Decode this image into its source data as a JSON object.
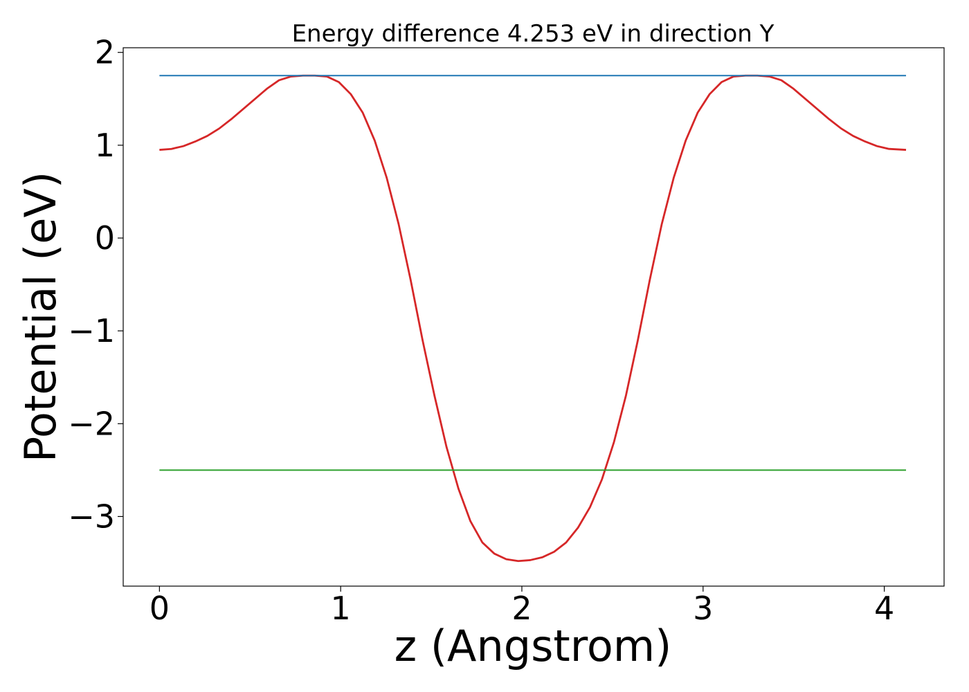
{
  "chart_data": {
    "type": "line",
    "title": "Energy difference 4.253 eV in direction Y",
    "xlabel": "z (Angstrom)",
    "ylabel": "Potential (eV)",
    "xlim": [
      -0.2,
      4.33
    ],
    "ylim": [
      -3.75,
      2.05
    ],
    "xticks": [
      0,
      1,
      2,
      3,
      4
    ],
    "xtick_labels": [
      "0",
      "1",
      "2",
      "3",
      "4"
    ],
    "yticks": [
      -3,
      -2,
      -1,
      0,
      1,
      2
    ],
    "ytick_labels": [
      "−3",
      "−2",
      "−1",
      "0",
      "1",
      "2"
    ],
    "grid": false,
    "legend": "none",
    "series": [
      {
        "color": "#d62728",
        "style": "line",
        "x": [
          0.0,
          0.066,
          0.132,
          0.198,
          0.264,
          0.33,
          0.396,
          0.462,
          0.528,
          0.594,
          0.66,
          0.726,
          0.792,
          0.858,
          0.924,
          0.99,
          1.056,
          1.122,
          1.188,
          1.254,
          1.32,
          1.386,
          1.452,
          1.518,
          1.584,
          1.65,
          1.716,
          1.782,
          1.848,
          1.914,
          1.98,
          2.046,
          2.112,
          2.178,
          2.244,
          2.31,
          2.376,
          2.442,
          2.508,
          2.574,
          2.64,
          2.706,
          2.772,
          2.838,
          2.904,
          2.97,
          3.036,
          3.102,
          3.168,
          3.234,
          3.3,
          3.366,
          3.432,
          3.498,
          3.564,
          3.63,
          3.696,
          3.762,
          3.828,
          3.894,
          3.96,
          4.026,
          4.12
        ],
        "y": [
          0.95,
          0.96,
          0.99,
          1.04,
          1.1,
          1.18,
          1.28,
          1.39,
          1.5,
          1.61,
          1.7,
          1.74,
          1.75,
          1.75,
          1.74,
          1.68,
          1.55,
          1.35,
          1.05,
          0.65,
          0.15,
          -0.45,
          -1.1,
          -1.7,
          -2.25,
          -2.7,
          -3.05,
          -3.28,
          -3.4,
          -3.46,
          -3.48,
          -3.47,
          -3.44,
          -3.38,
          -3.28,
          -3.12,
          -2.9,
          -2.6,
          -2.2,
          -1.7,
          -1.1,
          -0.45,
          0.15,
          0.65,
          1.05,
          1.35,
          1.55,
          1.68,
          1.74,
          1.75,
          1.75,
          1.74,
          1.7,
          1.61,
          1.5,
          1.39,
          1.28,
          1.18,
          1.1,
          1.04,
          0.99,
          0.96,
          0.95
        ]
      },
      {
        "color": "#1f77b4",
        "style": "hline",
        "x": [
          0.0,
          4.12
        ],
        "y": [
          1.75,
          1.75
        ]
      },
      {
        "color": "#2ca02c",
        "style": "hline",
        "x": [
          0.0,
          4.12
        ],
        "y": [
          -2.5,
          -2.5
        ]
      }
    ]
  }
}
